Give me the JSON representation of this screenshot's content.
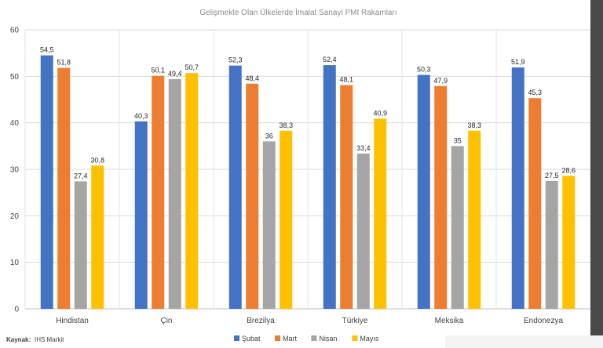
{
  "chart_data": {
    "type": "bar",
    "title": "Gelişmekte Olan Ülkelerde İmalat Sanayi PMI Rakamları",
    "categories": [
      "Hindistan",
      "Çin",
      "Brezilya",
      "Türkiye",
      "Meksika",
      "Endonezya"
    ],
    "series": [
      {
        "name": "Şubat",
        "color": "#4472c4",
        "values": [
          54.5,
          40.3,
          52.3,
          52.4,
          50.3,
          51.9
        ],
        "labels": [
          "54,5",
          "40,3",
          "52,3",
          "52,4",
          "50,3",
          "51,9"
        ]
      },
      {
        "name": "Mart",
        "color": "#ed7d31",
        "values": [
          51.8,
          50.1,
          48.4,
          48.1,
          47.9,
          45.3
        ],
        "labels": [
          "51,8",
          "50,1",
          "48,4",
          "48,1",
          "47,9",
          "45,3"
        ]
      },
      {
        "name": "Nisan",
        "color": "#a5a5a5",
        "values": [
          27.4,
          49.4,
          36,
          33.4,
          35,
          27.5
        ],
        "labels": [
          "27,4",
          "49,4",
          "36",
          "33,4",
          "35",
          "27,5"
        ]
      },
      {
        "name": "Mayıs",
        "color": "#ffc000",
        "values": [
          30.8,
          50.7,
          38.3,
          40.9,
          38.3,
          28.6
        ],
        "labels": [
          "30,8",
          "50,7",
          "38,3",
          "40,9",
          "38,3",
          "28,6"
        ]
      }
    ],
    "ylim": [
      0,
      60
    ],
    "yticks": [
      0,
      10,
      20,
      30,
      40,
      50,
      60
    ],
    "grid": true,
    "legend_position": "bottom-center"
  },
  "source": {
    "label": "Kaynak:",
    "value": "IHS Markit"
  }
}
